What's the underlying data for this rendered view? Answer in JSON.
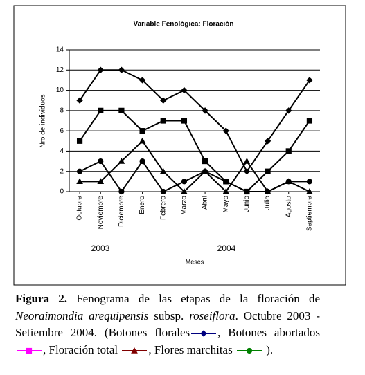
{
  "chart_data": {
    "type": "line",
    "title": "Variable Fenológica: Floración",
    "xlabel": "Meses",
    "ylabel": "Nro de individuos",
    "categories": [
      "Octubre",
      "Noviembre",
      "Diciembre",
      "Enero",
      "Febrero",
      "Marzo",
      "Abril",
      "Mayo",
      "Junio",
      "Julio",
      "Agosto",
      "Septiembre"
    ],
    "annotations": [
      "2003",
      "2004"
    ],
    "mark_color": "#000000",
    "series": [
      {
        "name": "Botones florales",
        "color": "#000080",
        "marker": "diamond",
        "values": [
          9,
          12,
          12,
          11,
          9,
          10,
          8,
          6,
          2,
          5,
          8,
          11
        ]
      },
      {
        "name": "Botones abortados",
        "color": "#ff00ff",
        "marker": "square",
        "values": [
          5,
          8,
          8,
          6,
          7,
          7,
          3,
          1,
          0,
          2,
          4,
          7
        ]
      },
      {
        "name": "Floración total",
        "color": "#800000",
        "marker": "triangle",
        "values": [
          1,
          1,
          3,
          5,
          2,
          0,
          2,
          0,
          3,
          0,
          1,
          0
        ]
      },
      {
        "name": "Flores marchitas",
        "color": "#008000",
        "marker": "circle",
        "values": [
          2,
          3,
          0,
          3,
          0,
          1,
          2,
          1,
          0,
          0,
          1,
          1
        ]
      }
    ],
    "ylim": [
      0,
      14
    ],
    "yticks": [
      0,
      2,
      4,
      6,
      8,
      10,
      12,
      14
    ],
    "grid": true
  },
  "caption": {
    "label": "Figura 2.",
    "text_1": "Fenograma de las etapas de la floración de",
    "species": "Neoraimondia arequipensis",
    "text_2": "subsp.",
    "variety": "roseiflora",
    "text_3": ". Octubre 2003 - Setiembre 2004. (",
    "separator": ",",
    "end": ")."
  }
}
